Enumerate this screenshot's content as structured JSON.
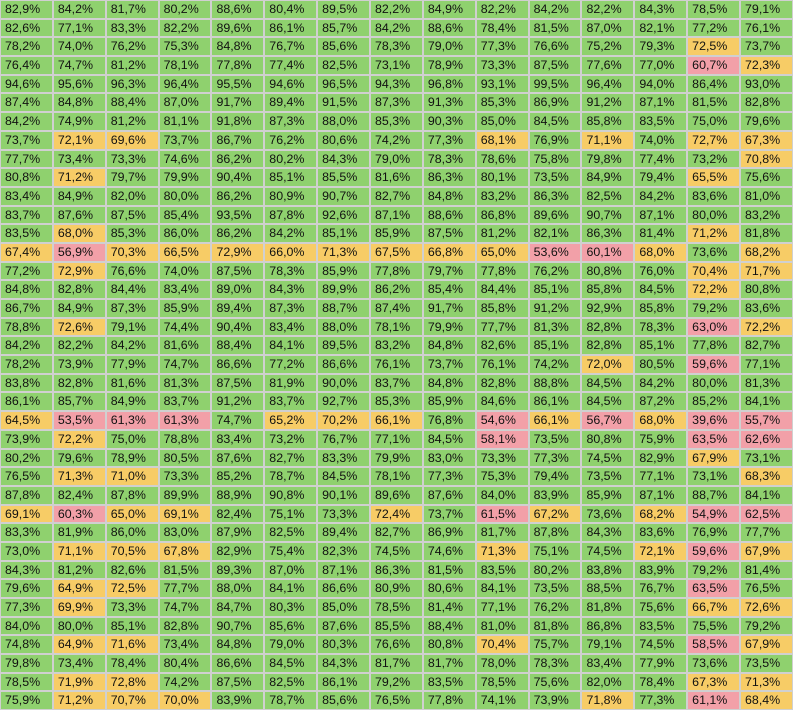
{
  "colors": {
    "high": "#8fd16e",
    "mid": "#f7cc66",
    "low": "#f2a0a8",
    "grid": "#d0d0d0"
  },
  "chart_data": {
    "type": "heatmap",
    "thresholds": {
      "mid_below": 73.0,
      "low_below": 64.0
    },
    "unit": "%",
    "rows": [
      [
        "82,9%",
        "84,2%",
        "81,7%",
        "80,2%",
        "88,6%",
        "80,4%",
        "89,5%",
        "82,2%",
        "84,9%",
        "82,2%",
        "84,2%",
        "82,2%",
        "84,3%",
        "78,5%",
        "79,1%"
      ],
      [
        "82,6%",
        "77,1%",
        "83,3%",
        "82,2%",
        "89,6%",
        "86,1%",
        "85,7%",
        "84,2%",
        "88,6%",
        "78,4%",
        "81,5%",
        "87,0%",
        "82,1%",
        "77,2%",
        "76,1%"
      ],
      [
        "78,2%",
        "74,0%",
        "76,2%",
        "75,3%",
        "84,8%",
        "76,7%",
        "85,6%",
        "78,3%",
        "79,0%",
        "77,3%",
        "76,6%",
        "75,2%",
        "79,3%",
        "72,5%",
        "73,7%"
      ],
      [
        "76,4%",
        "74,7%",
        "81,2%",
        "78,1%",
        "77,8%",
        "77,4%",
        "82,5%",
        "73,1%",
        "78,9%",
        "73,3%",
        "87,5%",
        "77,6%",
        "77,0%",
        "60,7%",
        "72,3%"
      ],
      [
        "94,6%",
        "95,6%",
        "96,3%",
        "96,4%",
        "95,5%",
        "94,6%",
        "96,5%",
        "94,3%",
        "96,8%",
        "93,1%",
        "99,5%",
        "96,4%",
        "94,0%",
        "86,4%",
        "93,0%"
      ],
      [
        "87,4%",
        "84,8%",
        "88,4%",
        "87,0%",
        "91,7%",
        "89,4%",
        "91,5%",
        "87,3%",
        "91,3%",
        "85,3%",
        "86,9%",
        "91,2%",
        "87,1%",
        "81,5%",
        "82,8%"
      ],
      [
        "84,2%",
        "74,9%",
        "81,2%",
        "81,1%",
        "91,8%",
        "87,3%",
        "88,0%",
        "85,3%",
        "90,3%",
        "85,0%",
        "84,5%",
        "85,8%",
        "83,5%",
        "75,0%",
        "79,6%"
      ],
      [
        "73,7%",
        "72,1%",
        "69,6%",
        "73,7%",
        "86,7%",
        "76,2%",
        "80,6%",
        "74,2%",
        "77,3%",
        "68,1%",
        "76,9%",
        "71,1%",
        "74,0%",
        "72,7%",
        "67,3%"
      ],
      [
        "77,7%",
        "73,4%",
        "73,3%",
        "74,6%",
        "86,2%",
        "80,2%",
        "84,3%",
        "79,0%",
        "78,3%",
        "78,6%",
        "75,8%",
        "79,8%",
        "77,4%",
        "73,2%",
        "70,8%"
      ],
      [
        "80,8%",
        "71,2%",
        "79,7%",
        "79,9%",
        "90,4%",
        "85,1%",
        "85,5%",
        "81,6%",
        "86,3%",
        "80,1%",
        "73,5%",
        "84,9%",
        "79,4%",
        "65,5%",
        "75,6%"
      ],
      [
        "83,4%",
        "84,9%",
        "82,0%",
        "80,0%",
        "86,2%",
        "80,9%",
        "90,7%",
        "82,7%",
        "84,8%",
        "83,2%",
        "86,3%",
        "82,5%",
        "84,2%",
        "83,6%",
        "81,0%"
      ],
      [
        "83,7%",
        "87,6%",
        "87,5%",
        "85,4%",
        "93,5%",
        "87,8%",
        "92,6%",
        "87,1%",
        "88,6%",
        "86,8%",
        "89,6%",
        "90,7%",
        "87,1%",
        "80,0%",
        "83,2%"
      ],
      [
        "83,5%",
        "68,0%",
        "85,3%",
        "86,0%",
        "86,2%",
        "84,2%",
        "85,1%",
        "85,9%",
        "87,5%",
        "81,2%",
        "82,1%",
        "86,3%",
        "81,4%",
        "71,2%",
        "81,8%"
      ],
      [
        "67,4%",
        "56,9%",
        "70,3%",
        "66,5%",
        "72,9%",
        "66,0%",
        "71,3%",
        "67,5%",
        "66,8%",
        "65,0%",
        "53,6%",
        "60,1%",
        "68,0%",
        "73,6%",
        "68,2%"
      ],
      [
        "77,2%",
        "72,9%",
        "76,6%",
        "74,0%",
        "87,5%",
        "78,3%",
        "85,9%",
        "77,8%",
        "79,7%",
        "77,8%",
        "76,2%",
        "80,8%",
        "76,0%",
        "70,4%",
        "71,7%"
      ],
      [
        "84,8%",
        "82,8%",
        "84,4%",
        "83,4%",
        "89,0%",
        "84,3%",
        "89,9%",
        "86,2%",
        "85,4%",
        "84,4%",
        "85,1%",
        "85,8%",
        "84,5%",
        "72,2%",
        "80,8%"
      ],
      [
        "86,7%",
        "84,9%",
        "87,3%",
        "85,9%",
        "89,4%",
        "87,3%",
        "88,7%",
        "87,4%",
        "91,7%",
        "85,8%",
        "91,2%",
        "92,9%",
        "85,8%",
        "79,2%",
        "83,6%"
      ],
      [
        "78,8%",
        "72,6%",
        "79,1%",
        "74,4%",
        "90,4%",
        "83,4%",
        "88,0%",
        "78,1%",
        "79,9%",
        "77,7%",
        "81,3%",
        "82,8%",
        "78,3%",
        "63,0%",
        "72,2%"
      ],
      [
        "84,2%",
        "82,2%",
        "84,2%",
        "81,6%",
        "88,4%",
        "84,1%",
        "89,5%",
        "83,2%",
        "84,8%",
        "82,6%",
        "85,1%",
        "82,8%",
        "85,1%",
        "77,8%",
        "82,7%"
      ],
      [
        "78,2%",
        "73,9%",
        "77,9%",
        "74,7%",
        "86,6%",
        "77,2%",
        "86,6%",
        "76,1%",
        "73,7%",
        "76,1%",
        "74,2%",
        "72,0%",
        "80,5%",
        "59,6%",
        "77,1%"
      ],
      [
        "83,8%",
        "82,8%",
        "81,6%",
        "81,3%",
        "87,5%",
        "81,9%",
        "90,0%",
        "83,7%",
        "84,8%",
        "82,8%",
        "88,8%",
        "84,5%",
        "84,2%",
        "80,0%",
        "81,3%"
      ],
      [
        "86,1%",
        "85,7%",
        "84,9%",
        "83,7%",
        "91,2%",
        "83,7%",
        "92,7%",
        "85,3%",
        "85,9%",
        "84,6%",
        "86,1%",
        "84,5%",
        "87,2%",
        "85,2%",
        "84,1%"
      ],
      [
        "64,5%",
        "53,5%",
        "61,3%",
        "61,3%",
        "74,7%",
        "65,2%",
        "70,2%",
        "66,1%",
        "76,8%",
        "54,6%",
        "66,1%",
        "56,7%",
        "68,0%",
        "39,6%",
        "55,7%"
      ],
      [
        "73,9%",
        "72,2%",
        "75,0%",
        "78,8%",
        "83,4%",
        "73,2%",
        "76,7%",
        "77,1%",
        "84,5%",
        "58,1%",
        "73,5%",
        "80,8%",
        "75,9%",
        "63,5%",
        "62,6%"
      ],
      [
        "80,2%",
        "79,6%",
        "78,9%",
        "80,5%",
        "87,6%",
        "82,7%",
        "83,3%",
        "79,9%",
        "83,0%",
        "73,3%",
        "77,3%",
        "74,5%",
        "82,9%",
        "67,9%",
        "73,1%"
      ],
      [
        "76,5%",
        "71,3%",
        "71,0%",
        "73,3%",
        "85,2%",
        "78,7%",
        "84,5%",
        "78,1%",
        "77,3%",
        "75,3%",
        "79,4%",
        "73,5%",
        "77,1%",
        "73,1%",
        "68,3%"
      ],
      [
        "87,8%",
        "82,4%",
        "87,8%",
        "89,9%",
        "88,9%",
        "90,8%",
        "90,1%",
        "89,6%",
        "87,6%",
        "84,0%",
        "83,9%",
        "85,9%",
        "87,1%",
        "88,7%",
        "84,1%"
      ],
      [
        "69,1%",
        "60,3%",
        "65,0%",
        "69,1%",
        "82,4%",
        "75,1%",
        "73,3%",
        "72,4%",
        "73,7%",
        "61,5%",
        "67,2%",
        "73,6%",
        "68,2%",
        "54,9%",
        "62,5%"
      ],
      [
        "83,3%",
        "81,9%",
        "86,0%",
        "83,0%",
        "87,9%",
        "82,5%",
        "89,4%",
        "82,7%",
        "86,9%",
        "81,7%",
        "87,8%",
        "84,3%",
        "83,6%",
        "76,9%",
        "77,7%"
      ],
      [
        "73,0%",
        "71,1%",
        "70,5%",
        "67,8%",
        "82,9%",
        "75,4%",
        "82,3%",
        "74,5%",
        "74,6%",
        "71,3%",
        "75,1%",
        "74,5%",
        "72,1%",
        "59,6%",
        "67,9%"
      ],
      [
        "84,3%",
        "81,2%",
        "82,6%",
        "81,5%",
        "89,3%",
        "87,0%",
        "87,1%",
        "86,3%",
        "81,5%",
        "83,5%",
        "80,2%",
        "83,8%",
        "83,9%",
        "79,2%",
        "81,4%"
      ],
      [
        "79,6%",
        "64,9%",
        "72,5%",
        "77,7%",
        "88,0%",
        "84,1%",
        "86,6%",
        "80,9%",
        "80,6%",
        "84,1%",
        "73,5%",
        "88,5%",
        "76,7%",
        "63,5%",
        "76,5%"
      ],
      [
        "77,3%",
        "69,9%",
        "73,3%",
        "74,7%",
        "84,7%",
        "80,3%",
        "85,0%",
        "78,5%",
        "81,4%",
        "77,1%",
        "76,2%",
        "81,8%",
        "75,6%",
        "66,7%",
        "72,6%"
      ],
      [
        "84,0%",
        "80,0%",
        "85,1%",
        "82,8%",
        "90,7%",
        "85,6%",
        "87,6%",
        "85,5%",
        "88,4%",
        "81,0%",
        "81,8%",
        "86,8%",
        "83,5%",
        "75,5%",
        "79,2%"
      ],
      [
        "74,8%",
        "64,9%",
        "71,6%",
        "73,4%",
        "84,8%",
        "79,0%",
        "80,3%",
        "76,6%",
        "80,8%",
        "70,4%",
        "75,7%",
        "79,1%",
        "74,5%",
        "58,5%",
        "67,9%"
      ],
      [
        "79,8%",
        "73,4%",
        "78,4%",
        "80,4%",
        "86,6%",
        "84,5%",
        "84,3%",
        "81,7%",
        "81,7%",
        "78,0%",
        "78,3%",
        "83,4%",
        "77,9%",
        "73,6%",
        "73,5%"
      ],
      [
        "78,5%",
        "71,9%",
        "72,8%",
        "74,2%",
        "87,5%",
        "82,5%",
        "86,1%",
        "79,2%",
        "83,5%",
        "78,5%",
        "75,6%",
        "82,0%",
        "78,4%",
        "67,3%",
        "71,3%"
      ],
      [
        "75,9%",
        "71,2%",
        "70,7%",
        "70,0%",
        "83,9%",
        "78,7%",
        "85,6%",
        "76,5%",
        "77,8%",
        "74,1%",
        "73,9%",
        "71,8%",
        "77,3%",
        "61,1%",
        "68,4%"
      ]
    ]
  }
}
